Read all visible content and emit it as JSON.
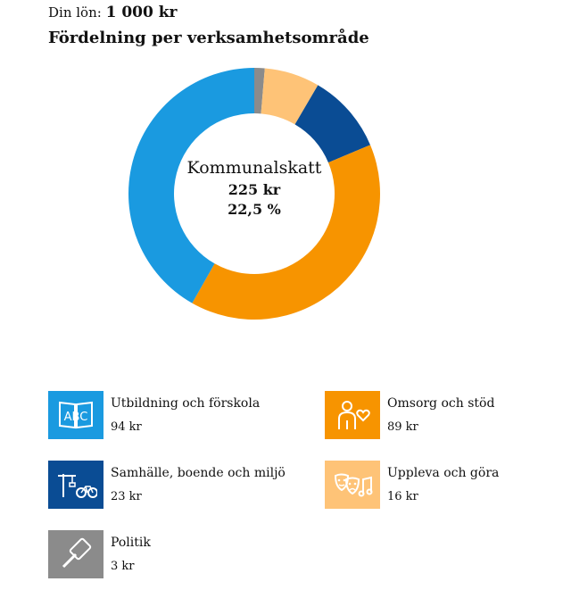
{
  "header": {
    "salary_label": "Din lön:",
    "salary_amount": "1 000 kr",
    "title": "Fördelning per verksamhetsområde"
  },
  "center": {
    "name": "Kommunalskatt",
    "amount": "225 kr",
    "percent": "22,5 %"
  },
  "colors": {
    "utbildning": "#1a9ae0",
    "omsorg": "#f79400",
    "samhalle": "#0a4c94",
    "uppleva": "#fec377",
    "politik": "#8b8b8b"
  },
  "legend": [
    {
      "label": "Utbildning och förskola",
      "value": "94 kr",
      "icon": "book-abc-icon",
      "color": "#1a9ae0"
    },
    {
      "label": "Omsorg och stöd",
      "value": "89 kr",
      "icon": "person-heart-icon",
      "color": "#f79400"
    },
    {
      "label": "Samhälle, boende och miljö",
      "value": "23 kr",
      "icon": "crane-bicycle-icon",
      "color": "#0a4c94"
    },
    {
      "label": "Uppleva och göra",
      "value": "16 kr",
      "icon": "theater-masks-music-icon",
      "color": "#fec377"
    },
    {
      "label": "Politik",
      "value": "3 kr",
      "icon": "gavel-icon",
      "color": "#8b8b8b"
    }
  ],
  "chart_data": {
    "type": "pie",
    "categories": [
      "Politik",
      "Uppleva och göra",
      "Samhälle, boende och miljö",
      "Omsorg och stöd",
      "Utbildning och förskola"
    ],
    "values": [
      3,
      16,
      23,
      89,
      94
    ],
    "colors": [
      "#8b8b8b",
      "#fec377",
      "#0a4c94",
      "#f79400",
      "#1a9ae0"
    ],
    "title": "Fördelning per verksamhetsområde",
    "total": 225
  }
}
